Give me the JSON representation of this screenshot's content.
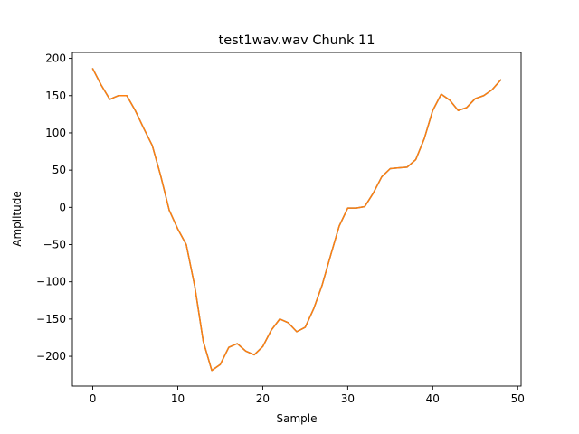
{
  "chart_data": {
    "type": "line",
    "title": "test1wav.wav Chunk 11",
    "xlabel": "Sample",
    "ylabel": "Amplitude",
    "xlim": [
      -2.4,
      50.4
    ],
    "ylim": [
      -240,
      208
    ],
    "xticks": [
      0,
      10,
      20,
      30,
      40,
      50
    ],
    "yticks": [
      200,
      150,
      100,
      50,
      0,
      -50,
      -100,
      -150,
      -200
    ],
    "ytick_labels": [
      "200",
      "150",
      "100",
      "50",
      "0",
      "−50",
      "−100",
      "−150",
      "−200"
    ],
    "grid": false,
    "legend": "none",
    "series": [
      {
        "color": "#1f77b4",
        "x": [
          0,
          1,
          2,
          3,
          4,
          5,
          6,
          7,
          8,
          9,
          10,
          11,
          12,
          13,
          14,
          15,
          16,
          17,
          18,
          19,
          20,
          21,
          22,
          23,
          24,
          25,
          26,
          27,
          28,
          29,
          30,
          31,
          32,
          33,
          34,
          35,
          36,
          37,
          38,
          39,
          40,
          41,
          42,
          43,
          44,
          45,
          46,
          47,
          48
        ],
        "y": [
          186,
          164,
          145,
          150,
          150,
          130,
          106,
          83,
          42,
          -4,
          -29,
          -50,
          -106,
          -180,
          -219,
          -211,
          -188,
          -183,
          -193,
          -198,
          -187,
          -165,
          -150,
          -155,
          -167,
          -161,
          -136,
          -104,
          -64,
          -25,
          -1,
          -1,
          1,
          19,
          41,
          52,
          53,
          54,
          64,
          92,
          130,
          152,
          144,
          130,
          134,
          146,
          150,
          158,
          171
        ]
      },
      {
        "color": "#ff7f0e",
        "x": [
          0,
          1,
          2,
          3,
          4,
          5,
          6,
          7,
          8,
          9,
          10,
          11,
          12,
          13,
          14,
          15,
          16,
          17,
          18,
          19,
          20,
          21,
          22,
          23,
          24,
          25,
          26,
          27,
          28,
          29,
          30,
          31,
          32,
          33,
          34,
          35,
          36,
          37,
          38,
          39,
          40,
          41,
          42,
          43,
          44,
          45,
          46,
          47,
          48
        ],
        "y": [
          186,
          164,
          145,
          150,
          150,
          130,
          106,
          83,
          42,
          -4,
          -29,
          -50,
          -106,
          -180,
          -219,
          -211,
          -188,
          -183,
          -193,
          -198,
          -187,
          -165,
          -150,
          -155,
          -167,
          -161,
          -136,
          -104,
          -64,
          -25,
          -1,
          -1,
          1,
          19,
          41,
          52,
          53,
          54,
          64,
          92,
          130,
          152,
          144,
          130,
          134,
          146,
          150,
          158,
          171
        ]
      }
    ]
  }
}
